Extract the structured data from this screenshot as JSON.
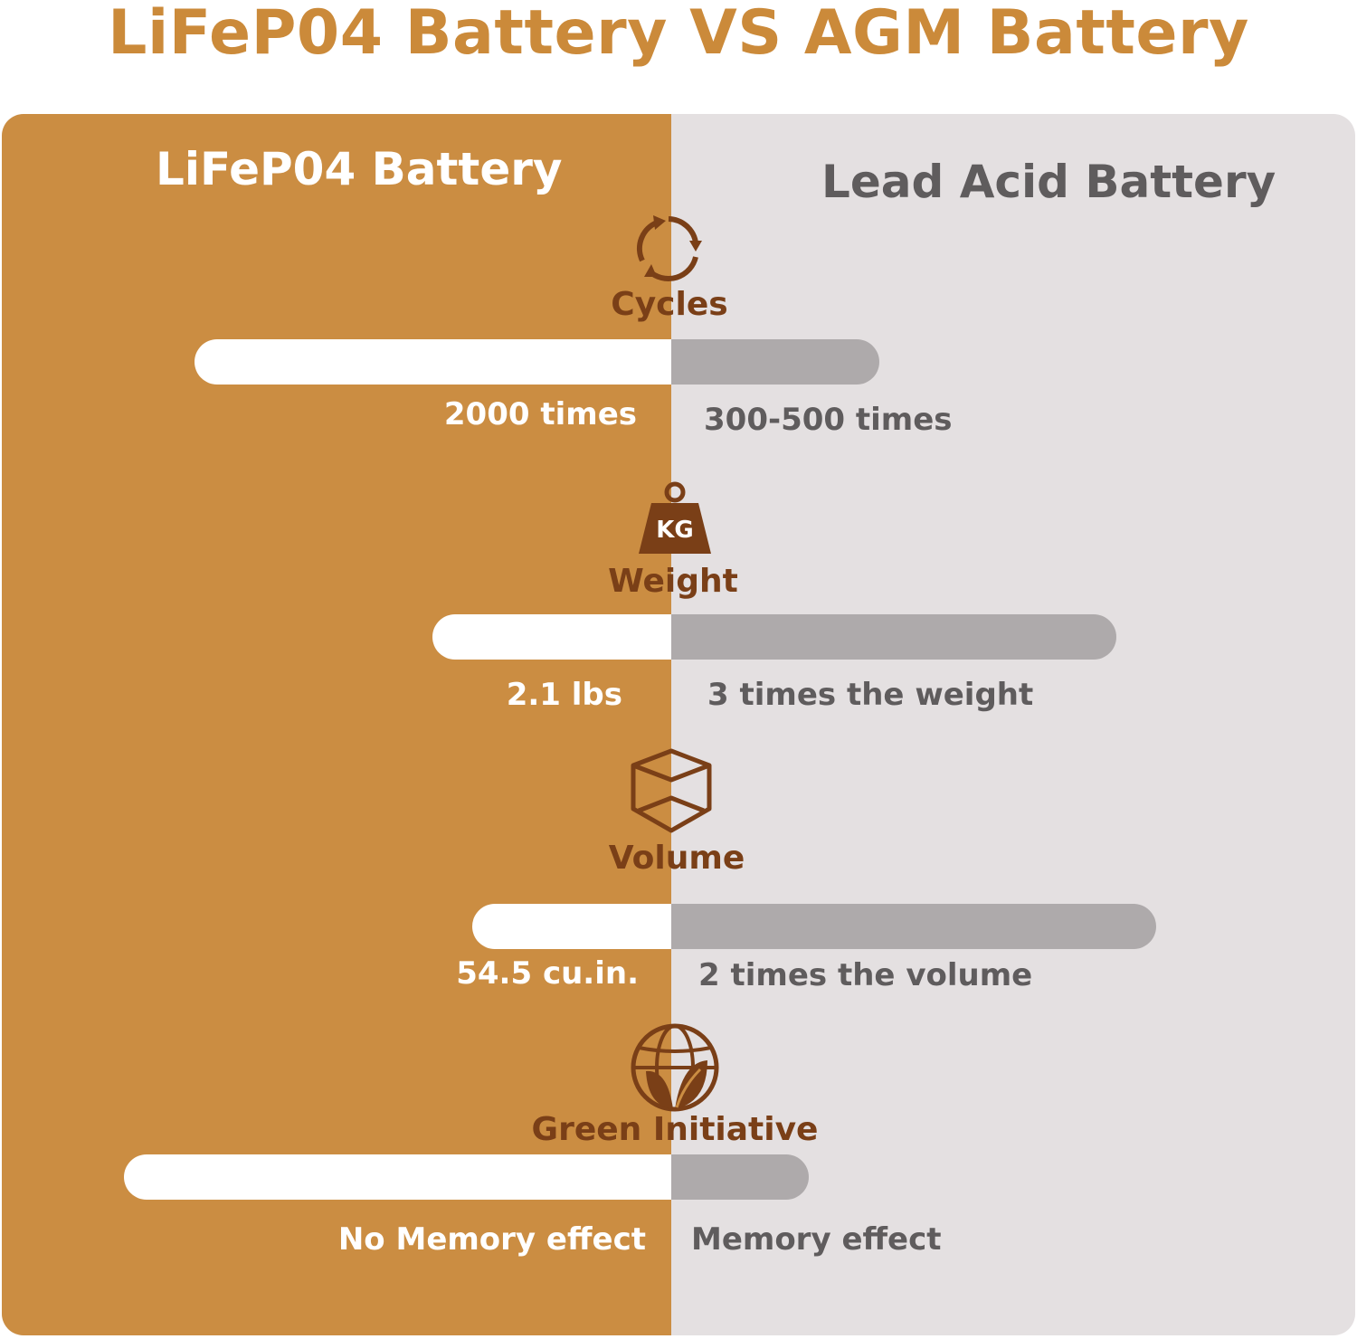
{
  "title": "LiFeP04 Battery VS AGM Battery",
  "columns": {
    "left": "LiFeP04 Battery",
    "right": "Lead Acid Battery"
  },
  "colors": {
    "title": "#cb8a3a",
    "left_panel": "#cb8d42",
    "right_panel": "#e4e0e1",
    "icon": "#7a3f17",
    "bar_left": "#ffffff",
    "bar_right": "#aeaaab"
  },
  "metrics": [
    {
      "icon": "cycle-arrows-icon",
      "label": "Cycles",
      "left_value": "2000 times",
      "right_value": "300-500 times"
    },
    {
      "icon": "kg-weight-icon",
      "label": "Weight",
      "weight_icon_text": "KG",
      "left_value": "2.1 lbs",
      "right_value": "3 times the weight"
    },
    {
      "icon": "cube-icon",
      "label": "Volume",
      "left_value": "54.5 cu.in.",
      "right_value": "2 times the volume"
    },
    {
      "icon": "globe-leaf-icon",
      "label": "Green Initiative",
      "left_value": "No Memory effect",
      "right_value": "Memory effect"
    }
  ]
}
